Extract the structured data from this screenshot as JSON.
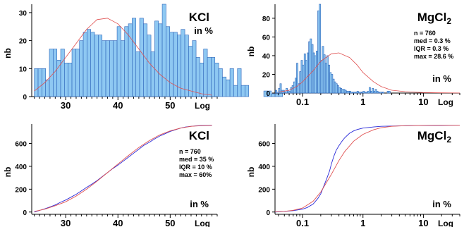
{
  "chart_data": [
    {
      "type": "bar",
      "title": "KCl",
      "unit_note": "in %",
      "ylabel": "nb",
      "axis_note": "Log",
      "xscale": "linear",
      "xlim": [
        23.5,
        59
      ],
      "ylim": [
        0,
        33
      ],
      "xticks": [
        "30",
        "40",
        "50"
      ],
      "yticks": [
        "0",
        "10",
        "20",
        "30"
      ],
      "bar_color": "#8ec8f2",
      "fit_color": "#e05050",
      "bins": {
        "start": 24.0,
        "width": 0.72,
        "values": [
          10,
          10,
          10,
          6,
          17,
          17,
          13,
          17,
          12,
          12,
          17,
          17,
          20,
          23,
          24,
          23,
          22,
          22,
          20,
          20,
          20,
          20,
          25,
          20,
          25,
          26,
          28,
          16,
          28,
          26,
          22,
          16,
          27,
          26,
          33,
          25,
          23,
          23,
          22,
          24,
          22,
          18,
          20,
          14,
          12,
          17,
          14,
          14,
          12,
          10,
          7,
          6,
          10,
          4,
          10,
          4,
          4,
          0,
          0,
          0,
          0,
          2,
          2,
          1,
          1,
          2
        ]
      },
      "fit_curve": {
        "x": [
          24,
          26,
          28,
          30,
          32,
          34,
          36,
          38,
          40,
          42,
          44,
          46,
          48,
          50,
          52,
          54,
          56,
          58
        ],
        "y": [
          2,
          5,
          9,
          14,
          19,
          24,
          27.5,
          28,
          26,
          22,
          17,
          12,
          8,
          5,
          3,
          2,
          1,
          0.5
        ]
      }
    },
    {
      "type": "bar",
      "title": "MgCl",
      "title_subscript": "2",
      "unit_note": "in %",
      "ylabel": "nb",
      "axis_note": "Log",
      "xscale": "log",
      "xlim": [
        0.035,
        40
      ],
      "ylim": [
        0,
        95
      ],
      "xticks": [
        "0.1",
        "1",
        "10"
      ],
      "yticks": [
        "0",
        "20",
        "40",
        "60",
        "80"
      ],
      "bar_color": "#8ec8f2",
      "fit_color": "#e05050",
      "stats": [
        "n      = 760",
        "med = 0.3 %",
        "IQR  = 0.3 %",
        "max = 28.6 %"
      ],
      "bins": {
        "start_log10": -1.45,
        "width_log10": 0.025,
        "values": [
          3,
          1,
          5,
          10,
          3,
          3,
          1,
          5,
          3,
          2,
          6,
          8,
          12,
          16,
          32,
          10,
          23,
          35,
          30,
          42,
          35,
          43,
          55,
          58,
          52,
          43,
          40,
          45,
          88,
          95,
          35,
          50,
          41,
          32,
          40,
          30,
          22,
          20,
          15,
          12,
          10,
          8,
          6,
          5,
          4,
          4,
          3,
          2,
          2,
          2,
          1,
          1,
          1,
          1,
          2,
          1,
          1,
          1,
          2,
          1,
          1,
          2,
          6,
          2,
          5,
          2,
          4,
          2,
          1,
          1,
          1,
          1,
          0,
          0,
          2,
          2
        ]
      },
      "fit_curve": {
        "x": [
          0.04,
          0.06,
          0.08,
          0.1,
          0.15,
          0.2,
          0.3,
          0.4,
          0.6,
          0.8,
          1,
          1.5,
          2,
          3,
          5,
          10,
          20,
          40
        ],
        "y": [
          1,
          3,
          7,
          12,
          24,
          34,
          42,
          43,
          38,
          30,
          22,
          12,
          7,
          3,
          1.5,
          0.5,
          0.2,
          0.1
        ]
      }
    },
    {
      "type": "line",
      "title": "KCl",
      "unit_note": "in %",
      "ylabel": "nb",
      "axis_note": "Log",
      "xscale": "linear",
      "xlim": [
        23.5,
        59
      ],
      "ylim": [
        -20,
        770
      ],
      "xticks": [
        "30",
        "40",
        "50"
      ],
      "yticks": [
        "0",
        "200",
        "400",
        "600"
      ],
      "stats": [
        "n      = 760",
        "med = 35 %",
        "IQR  = 10 %",
        "max = 60%"
      ],
      "series": [
        {
          "color": "#2a2ad8",
          "x": [
            24,
            25,
            26,
            27,
            28,
            29,
            30,
            31,
            32,
            33,
            34,
            35,
            36,
            37,
            38,
            39,
            40,
            41,
            42,
            43,
            44,
            45,
            46,
            47,
            48,
            49,
            50,
            51,
            52,
            53,
            54,
            55,
            56,
            58
          ],
          "y": [
            0,
            14,
            28,
            45,
            62,
            85,
            105,
            130,
            155,
            185,
            215,
            245,
            275,
            310,
            345,
            380,
            410,
            445,
            480,
            515,
            550,
            585,
            610,
            640,
            665,
            685,
            705,
            720,
            735,
            745,
            750,
            755,
            758,
            760
          ]
        },
        {
          "color": "#e05050",
          "x": [
            24,
            26,
            28,
            30,
            32,
            34,
            36,
            38,
            40,
            42,
            44,
            46,
            48,
            50,
            52,
            54,
            56,
            58
          ],
          "y": [
            5,
            25,
            55,
            90,
            140,
            200,
            270,
            345,
            420,
            495,
            565,
            625,
            675,
            710,
            735,
            750,
            756,
            759
          ]
        }
      ]
    },
    {
      "type": "line",
      "title": "MgCl",
      "title_subscript": "2",
      "unit_note": "in %",
      "ylabel": "nb",
      "axis_note": "Log",
      "xscale": "log",
      "xlim": [
        0.035,
        40
      ],
      "ylim": [
        -20,
        770
      ],
      "xticks": [
        "0.1",
        "1",
        "10"
      ],
      "yticks": [
        "0",
        "200",
        "400",
        "600"
      ],
      "series": [
        {
          "color": "#2a2ad8",
          "x": [
            0.035,
            0.05,
            0.07,
            0.1,
            0.12,
            0.15,
            0.18,
            0.2,
            0.22,
            0.25,
            0.28,
            0.3,
            0.33,
            0.36,
            0.4,
            0.45,
            0.5,
            0.6,
            0.7,
            0.8,
            1,
            1.5,
            2,
            3,
            5,
            10,
            20,
            40
          ],
          "y": [
            0,
            5,
            12,
            25,
            40,
            70,
            120,
            160,
            215,
            290,
            360,
            420,
            490,
            540,
            580,
            620,
            650,
            690,
            710,
            722,
            735,
            745,
            750,
            753,
            756,
            758,
            759,
            760
          ]
        },
        {
          "color": "#e05050",
          "x": [
            0.035,
            0.05,
            0.07,
            0.1,
            0.15,
            0.2,
            0.3,
            0.4,
            0.5,
            0.7,
            1,
            1.5,
            2,
            3,
            5,
            10,
            20,
            40
          ],
          "y": [
            2,
            6,
            15,
            35,
            95,
            175,
            330,
            450,
            530,
            620,
            680,
            720,
            738,
            750,
            756,
            759,
            760,
            760
          ]
        }
      ]
    }
  ]
}
